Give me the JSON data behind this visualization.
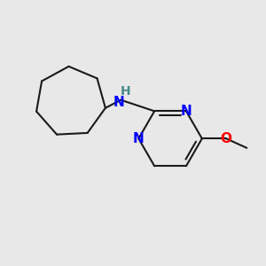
{
  "background_color": "#e8e8e8",
  "bond_color": "#1a1a1a",
  "N_color": "#0000ff",
  "O_color": "#ff0000",
  "NH_color": "#4a8a8a",
  "line_width": 1.5,
  "font_size": 11,
  "xlim": [
    -3.5,
    3.5
  ],
  "ylim": [
    -2.5,
    2.8
  ]
}
